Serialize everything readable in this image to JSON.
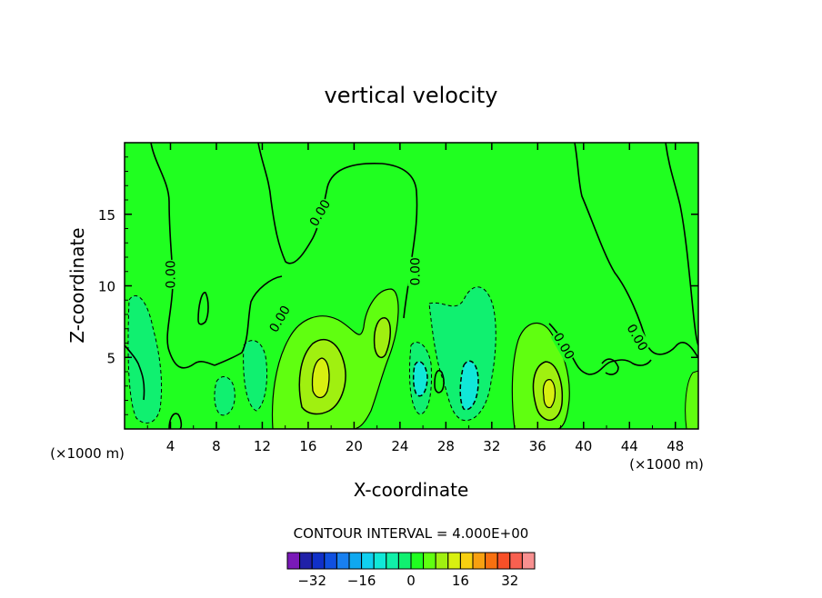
{
  "chart_data": {
    "type": "contour",
    "title": "vertical velocity",
    "xlabel": "X-coordinate",
    "ylabel": "Z-coordinate",
    "x_unit_left": "(×1000 m)",
    "x_unit_right": "(×1000 m)",
    "xlim": [
      0,
      50
    ],
    "ylim": [
      0,
      20
    ],
    "x_ticks": [
      4,
      8,
      12,
      16,
      20,
      24,
      28,
      32,
      36,
      40,
      44,
      48
    ],
    "y_ticks": [
      5,
      10,
      15
    ],
    "contour_interval_label": "CONTOUR INTERVAL = 4.000E+00",
    "contour_labels": [
      {
        "text": "0.00",
        "x": 4.0,
        "y": 10.8,
        "rot": -90
      },
      {
        "text": "0.00",
        "x": 17.0,
        "y": 15.1,
        "rot": -60
      },
      {
        "text": "0.00",
        "x": 13.5,
        "y": 7.7,
        "rot": -60
      },
      {
        "text": "0.00",
        "x": 25.3,
        "y": 11.0,
        "rot": -90
      },
      {
        "text": "0.00",
        "x": 38.3,
        "y": 5.8,
        "rot": 60
      },
      {
        "text": "0.00",
        "x": 44.7,
        "y": 6.4,
        "rot": 60
      }
    ],
    "colorbar": {
      "min": -40,
      "max": 40,
      "step": 4,
      "tick_labels": [
        "-32",
        "-16",
        "0",
        "16",
        "32"
      ],
      "colors": [
        "#7a19b8",
        "#2020a8",
        "#1030c8",
        "#1050e0",
        "#1880f0",
        "#10a8f0",
        "#10d0f0",
        "#10e8d8",
        "#10f0a8",
        "#10f070",
        "#20ff20",
        "#60ff10",
        "#a0f010",
        "#d8f010",
        "#f8d010",
        "#f8a010",
        "#f87010",
        "#f85028",
        "#f86050",
        "#f89090"
      ]
    },
    "background_color": "#20ff20"
  }
}
